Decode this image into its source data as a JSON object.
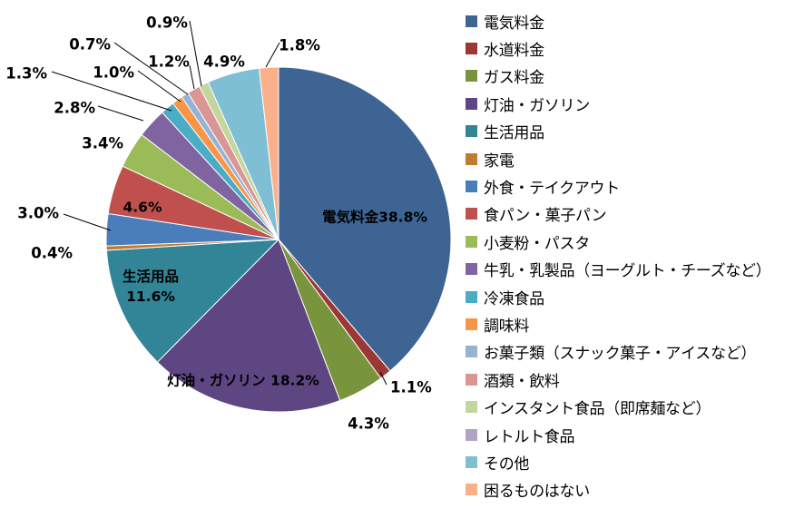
{
  "chart_data": {
    "type": "pie",
    "title": "",
    "categories": [
      "電気料金",
      "水道料金",
      "ガス料金",
      "灯油・ガソリン",
      "生活用品",
      "家電",
      "外食・テイクアウト",
      "食パン・菓子パン",
      "小麦粉・パスタ",
      "牛乳・乳製品（ヨーグルト・チーズなど）",
      "冷凍食品",
      "調味料",
      "お菓子類（スナック菓子・アイスなど）",
      "酒類・飲料",
      "インスタント食品（即席麺など）",
      "レトルト食品",
      "その他",
      "困るものはない"
    ],
    "values": [
      38.8,
      1.1,
      4.3,
      18.2,
      11.6,
      0.4,
      3.0,
      4.6,
      3.4,
      2.8,
      1.3,
      1.0,
      0.7,
      1.2,
      0.9,
      0.0,
      4.9,
      1.8
    ],
    "labels": [
      "電気料金38.8%",
      "1.1%",
      "4.3%",
      "灯油・ガソリン 18.2%",
      "生活用品|11.6%",
      "0.4%",
      "3.0%",
      "4.6%",
      "3.4%",
      "2.8%",
      "1.3%",
      "1.0%",
      "0.7%",
      "1.2%",
      "0.9%",
      "",
      "4.9%",
      "1.8%"
    ],
    "colors": [
      "#3E6494",
      "#9B3835",
      "#78943C",
      "#5E4682",
      "#318596",
      "#C07A33",
      "#4A7EBB",
      "#C0504D",
      "#9BBB59",
      "#8064A2",
      "#4BACC6",
      "#F79646",
      "#95B3D7",
      "#D99694",
      "#C3D69B",
      "#B3A2C7",
      "#7FBFD3",
      "#FAB08A"
    ],
    "legend_position": "right"
  }
}
